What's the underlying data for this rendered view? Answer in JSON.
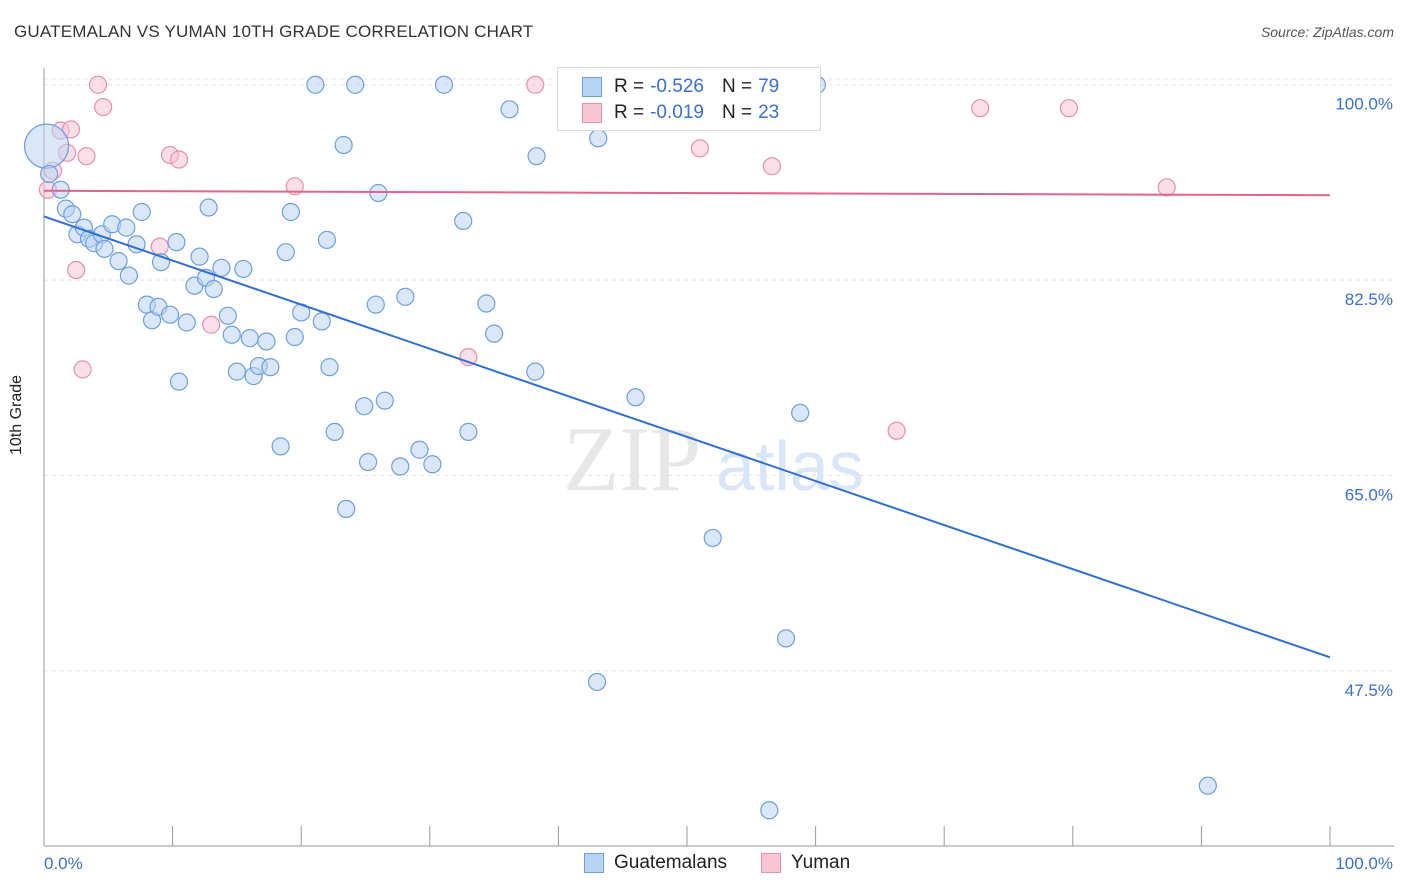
{
  "header": {
    "title": "GUATEMALAN VS YUMAN 10TH GRADE CORRELATION CHART",
    "source": "Source: ZipAtlas.com"
  },
  "watermark": {
    "zip": "ZIP",
    "atlas": "atlas"
  },
  "colors": {
    "blue_fill": "#b9d3f3",
    "blue_stroke": "#6e9fde",
    "blue_line": "#2f6fd3",
    "pink_fill": "#f8c5d5",
    "pink_stroke": "#e98fae",
    "pink_line": "#e0648f",
    "tick_text": "#3b6fd0",
    "grid": "#e3e3e3"
  },
  "legend": {
    "rows": [
      {
        "r_label": "R =",
        "r_value": "-0.526",
        "n_label": "N =",
        "n_value": "79"
      },
      {
        "r_label": "R =",
        "r_value": "-0.019",
        "n_label": "N =",
        "n_value": "23"
      }
    ],
    "bottom": [
      "Guatemalans",
      "Yuman"
    ]
  },
  "chart_data": {
    "type": "scatter",
    "xlabel": "",
    "ylabel": "10th Grade",
    "xlim": [
      0,
      100
    ],
    "ylim": [
      31.8,
      101.5
    ],
    "x_ticks": [
      "0.0%",
      "100.0%"
    ],
    "y_ticks": [
      {
        "value": 100.0,
        "label": "100.0%"
      },
      {
        "value": 82.5,
        "label": "82.5%"
      },
      {
        "value": 65.0,
        "label": "65.0%"
      },
      {
        "value": 47.5,
        "label": "47.5%"
      }
    ],
    "grid": true,
    "legend_position": "top-center",
    "series": [
      {
        "name": "Guatemalans",
        "trend": {
          "x": [
            0,
            100
          ],
          "y": [
            88.2,
            48.7
          ]
        },
        "points": [
          [
            0.2,
            94.5
          ],
          [
            0.4,
            92.0
          ],
          [
            1.3,
            90.6
          ],
          [
            1.7,
            88.9
          ],
          [
            2.2,
            88.4
          ],
          [
            2.6,
            86.6
          ],
          [
            3.1,
            87.2
          ],
          [
            3.5,
            86.2
          ],
          [
            3.9,
            85.8
          ],
          [
            4.5,
            86.6
          ],
          [
            4.7,
            85.3
          ],
          [
            5.3,
            87.5
          ],
          [
            5.8,
            84.2
          ],
          [
            6.4,
            87.2
          ],
          [
            6.6,
            82.9
          ],
          [
            7.2,
            85.7
          ],
          [
            7.6,
            88.6
          ],
          [
            8.0,
            80.3
          ],
          [
            8.4,
            78.9
          ],
          [
            8.9,
            80.1
          ],
          [
            9.1,
            84.1
          ],
          [
            9.8,
            79.4
          ],
          [
            10.3,
            85.9
          ],
          [
            10.5,
            73.4
          ],
          [
            11.1,
            78.7
          ],
          [
            11.7,
            82.0
          ],
          [
            12.1,
            84.6
          ],
          [
            12.6,
            82.7
          ],
          [
            12.8,
            89.0
          ],
          [
            13.2,
            81.7
          ],
          [
            13.8,
            83.6
          ],
          [
            14.3,
            79.3
          ],
          [
            14.6,
            77.6
          ],
          [
            15.0,
            74.3
          ],
          [
            15.5,
            83.5
          ],
          [
            16.0,
            77.3
          ],
          [
            16.3,
            73.9
          ],
          [
            16.7,
            74.8
          ],
          [
            17.3,
            77.0
          ],
          [
            17.6,
            74.7
          ],
          [
            18.4,
            67.6
          ],
          [
            18.8,
            85.0
          ],
          [
            19.2,
            88.6
          ],
          [
            19.5,
            77.4
          ],
          [
            20.0,
            79.6
          ],
          [
            21.1,
            100.0
          ],
          [
            21.6,
            78.8
          ],
          [
            22.0,
            86.1
          ],
          [
            22.2,
            74.7
          ],
          [
            22.6,
            68.9
          ],
          [
            23.3,
            94.6
          ],
          [
            23.5,
            62.0
          ],
          [
            24.2,
            100.0
          ],
          [
            24.9,
            71.2
          ],
          [
            25.2,
            66.2
          ],
          [
            25.8,
            80.3
          ],
          [
            26.0,
            90.3
          ],
          [
            26.5,
            71.7
          ],
          [
            27.7,
            65.8
          ],
          [
            28.1,
            81.0
          ],
          [
            29.2,
            67.3
          ],
          [
            30.2,
            66.0
          ],
          [
            31.1,
            100.0
          ],
          [
            32.6,
            87.8
          ],
          [
            33.0,
            68.9
          ],
          [
            34.4,
            80.4
          ],
          [
            35.0,
            77.7
          ],
          [
            36.2,
            97.8
          ],
          [
            38.2,
            74.3
          ],
          [
            38.3,
            93.6
          ],
          [
            43.1,
            95.2
          ],
          [
            43.0,
            46.5
          ],
          [
            46.0,
            72.0
          ],
          [
            52.0,
            59.4
          ],
          [
            56.4,
            35.0
          ],
          [
            57.7,
            50.4
          ],
          [
            58.8,
            70.6
          ],
          [
            60.1,
            100.0
          ],
          [
            90.5,
            37.2
          ]
        ]
      },
      {
        "name": "Yuman",
        "trend": {
          "x": [
            0,
            100
          ],
          "y": [
            90.5,
            90.1
          ]
        },
        "points": [
          [
            0.3,
            90.6
          ],
          [
            0.7,
            92.3
          ],
          [
            1.3,
            95.9
          ],
          [
            1.8,
            93.9
          ],
          [
            2.1,
            96.0
          ],
          [
            2.5,
            83.4
          ],
          [
            3.0,
            74.5
          ],
          [
            3.3,
            93.6
          ],
          [
            4.2,
            100.0
          ],
          [
            4.6,
            98.0
          ],
          [
            9.0,
            85.5
          ],
          [
            9.8,
            93.7
          ],
          [
            10.5,
            93.3
          ],
          [
            13.0,
            78.5
          ],
          [
            19.5,
            90.9
          ],
          [
            33.0,
            75.6
          ],
          [
            38.2,
            100.0
          ],
          [
            51.0,
            94.3
          ],
          [
            56.6,
            92.7
          ],
          [
            66.3,
            69.0
          ],
          [
            72.8,
            97.9
          ],
          [
            79.7,
            97.9
          ],
          [
            87.3,
            90.8
          ]
        ]
      }
    ]
  }
}
